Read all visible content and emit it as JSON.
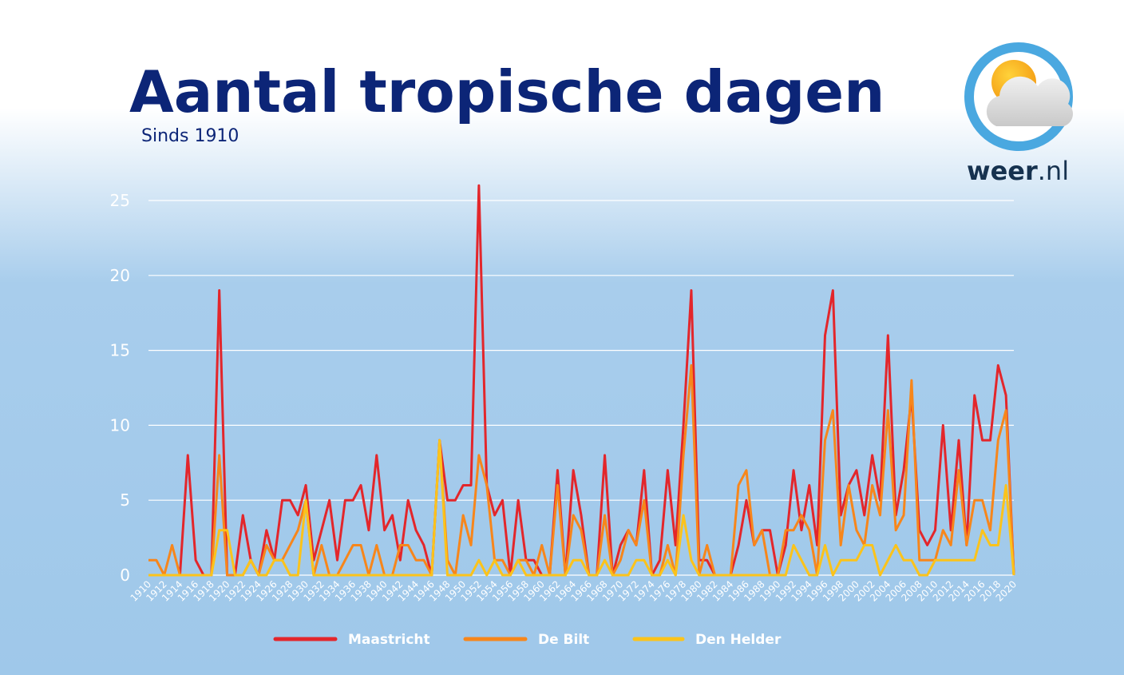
{
  "chart_data": {
    "type": "line",
    "title": "Aantal tropische dagen",
    "subtitle": "Sinds 1910",
    "logo": {
      "brand": "weer",
      "suffix": ".nl"
    },
    "categories": [
      1910,
      null,
      1912,
      null,
      1914,
      null,
      1916,
      null,
      1918,
      null,
      1920,
      null,
      1922,
      null,
      1924,
      null,
      1926,
      null,
      1928,
      null,
      1930,
      null,
      1932,
      null,
      1934,
      null,
      1936,
      null,
      1938,
      null,
      1940,
      null,
      1942,
      null,
      1944,
      null,
      1946,
      null,
      1948,
      null,
      1950,
      null,
      1952,
      null,
      1954,
      null,
      1956,
      null,
      1958,
      null,
      1960,
      null,
      1962,
      null,
      1964,
      null,
      1966,
      null,
      1968,
      null,
      1970,
      null,
      1972,
      null,
      1974,
      null,
      1976,
      null,
      1978,
      null,
      1980,
      null,
      1982,
      null,
      1984,
      null,
      1986,
      null,
      1988,
      null,
      1990,
      null,
      1992,
      null,
      1994,
      null,
      1996,
      null,
      1998,
      null,
      2000,
      null,
      2002,
      null,
      2004,
      null,
      2006,
      null,
      2008,
      null,
      2010,
      null,
      2012,
      null,
      2014,
      null,
      2016,
      null,
      2018,
      null,
      2020
    ],
    "series": [
      {
        "name": "Maastricht",
        "color": "#e3262b",
        "values": [
          0,
          0,
          0,
          0,
          0,
          8,
          1,
          0,
          0,
          19,
          0,
          0,
          4,
          1,
          0,
          3,
          1,
          5,
          5,
          4,
          6,
          1,
          3,
          5,
          1,
          5,
          5,
          6,
          3,
          8,
          3,
          4,
          1,
          5,
          3,
          2,
          0,
          9,
          5,
          5,
          6,
          6,
          26,
          6,
          4,
          5,
          0,
          5,
          1,
          1,
          0,
          0,
          7,
          0,
          7,
          4,
          0,
          0,
          8,
          0,
          2,
          3,
          2,
          7,
          0,
          1,
          7,
          2,
          10,
          19,
          1,
          1,
          0,
          0,
          0,
          2,
          5,
          2,
          3,
          3,
          0,
          2,
          7,
          3,
          6,
          2,
          16,
          19,
          4,
          6,
          7,
          4,
          8,
          5,
          16,
          4,
          7,
          12,
          3,
          2,
          3,
          10,
          3,
          9,
          2,
          12,
          9,
          9,
          14,
          12,
          0
        ]
      },
      {
        "name": "De Bilt",
        "color": "#f7861b",
        "values": [
          1,
          1,
          0,
          2,
          0,
          0,
          0,
          0,
          0,
          8,
          0,
          0,
          0,
          1,
          0,
          2,
          1,
          1,
          2,
          3,
          5,
          0,
          2,
          0,
          0,
          1,
          2,
          2,
          0,
          2,
          0,
          0,
          2,
          2,
          1,
          1,
          0,
          9,
          1,
          0,
          4,
          2,
          8,
          6,
          1,
          1,
          0,
          1,
          1,
          0,
          2,
          0,
          6,
          0,
          4,
          3,
          0,
          0,
          4,
          0,
          1,
          3,
          2,
          5,
          0,
          0,
          2,
          0,
          8,
          14,
          0,
          2,
          0,
          0,
          0,
          6,
          7,
          2,
          3,
          0,
          0,
          3,
          3,
          4,
          3,
          0,
          9,
          11,
          2,
          6,
          3,
          2,
          6,
          4,
          11,
          3,
          4,
          13,
          1,
          1,
          1,
          3,
          2,
          7,
          2,
          5,
          5,
          3,
          9,
          11,
          0
        ]
      },
      {
        "name": "Den Helder",
        "color": "#fbc31b",
        "values": [
          0,
          0,
          0,
          0,
          0,
          0,
          0,
          0,
          0,
          3,
          3,
          0,
          0,
          1,
          0,
          0,
          1,
          1,
          0,
          0,
          5,
          0,
          0,
          0,
          0,
          0,
          0,
          0,
          0,
          0,
          0,
          0,
          0,
          0,
          0,
          0,
          0,
          9,
          0,
          0,
          0,
          0,
          1,
          0,
          1,
          0,
          0,
          1,
          0,
          0,
          0,
          0,
          0,
          0,
          1,
          1,
          0,
          0,
          1,
          0,
          0,
          0,
          1,
          1,
          0,
          0,
          1,
          0,
          4,
          1,
          0,
          0,
          0,
          0,
          0,
          0,
          0,
          0,
          0,
          0,
          0,
          0,
          2,
          1,
          0,
          0,
          2,
          0,
          1,
          1,
          1,
          2,
          2,
          0,
          1,
          2,
          1,
          1,
          0,
          0,
          1,
          1,
          1,
          1,
          1,
          1,
          3,
          2,
          2,
          6,
          0
        ]
      }
    ],
    "ylim": [
      0,
      27
    ],
    "yticks": [
      0,
      5,
      10,
      15,
      20,
      25
    ],
    "grid": true,
    "legend": "bottom"
  }
}
